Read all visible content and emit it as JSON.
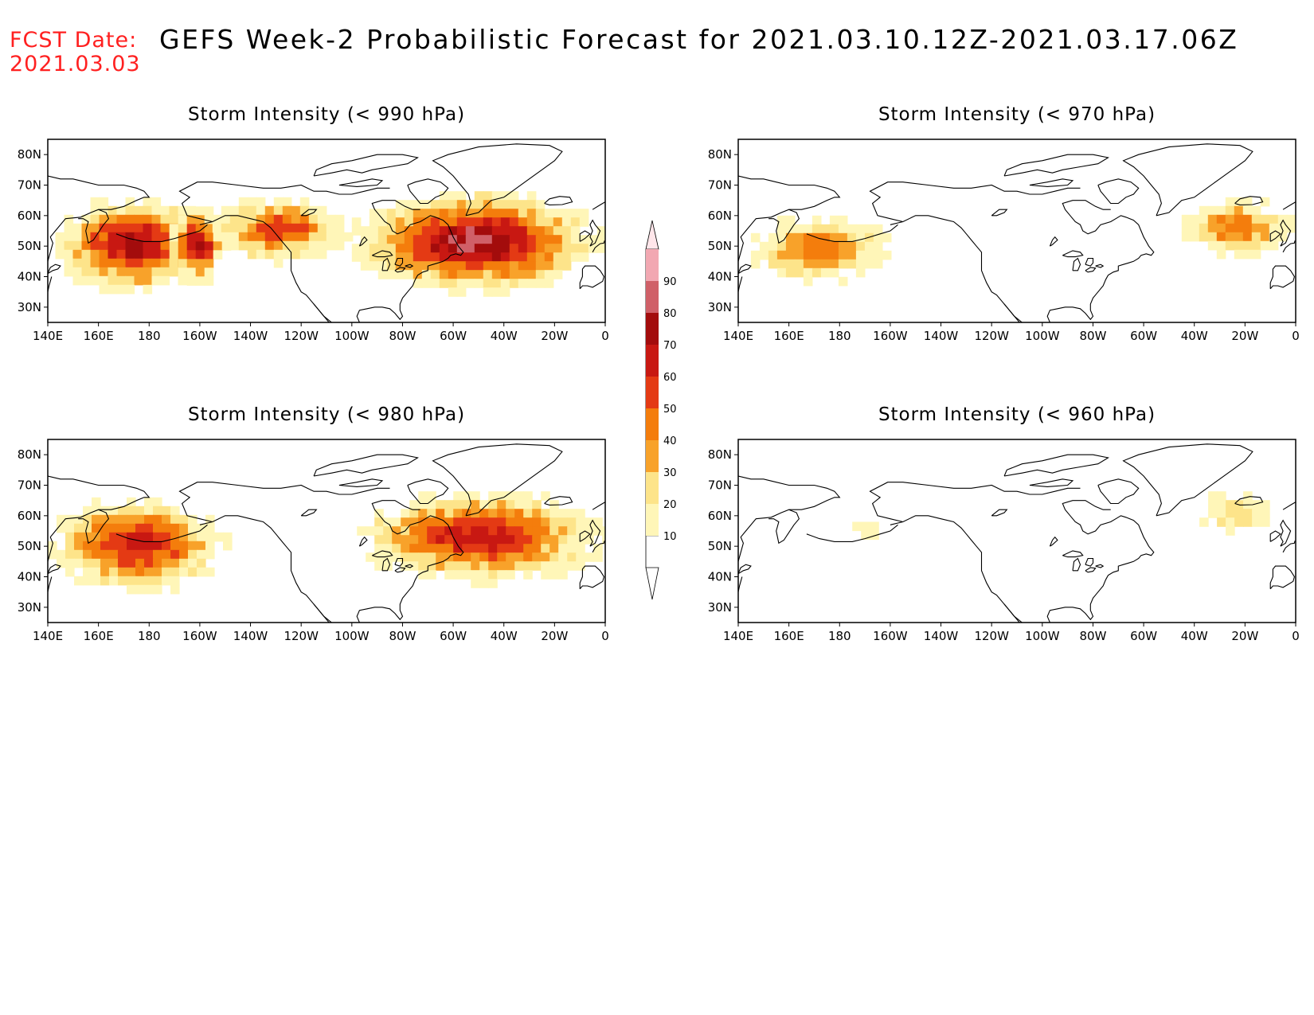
{
  "header": {
    "fcst_label": "FCST Date:",
    "fcst_date": "2021.03.03",
    "title": "GEFS Week-2 Probabilistic Forecast for 2021.03.10.12Z-2021.03.17.06Z"
  },
  "axes": {
    "lon_labels": [
      "140E",
      "160E",
      "180",
      "160W",
      "140W",
      "120W",
      "100W",
      "80W",
      "60W",
      "40W",
      "20W",
      "0"
    ],
    "lat_labels": [
      "80N",
      "70N",
      "60N",
      "50N",
      "40N",
      "30N"
    ],
    "lon_range_deg": [
      140,
      360
    ],
    "lat_range_deg": [
      25,
      85
    ]
  },
  "colorbar": {
    "levels": [
      "10",
      "20",
      "30",
      "40",
      "50",
      "60",
      "70",
      "80",
      "90"
    ],
    "colors": [
      "#fff6b8",
      "#fde48a",
      "#f8a22a",
      "#f47d0c",
      "#e43a14",
      "#c81812",
      "#a30c0c",
      "#d06068",
      "#f2a8b2",
      "#ffe6ea"
    ]
  },
  "panels": [
    {
      "id": "p990",
      "title": "Storm Intensity (< 990 hPa)",
      "regions": [
        {
          "lon": [
            143,
            205
          ],
          "lat": [
            35,
            66
          ],
          "max_level": 7
        },
        {
          "lon": [
            188,
            210
          ],
          "lat": [
            38,
            63
          ],
          "max_level": 7
        },
        {
          "lon": [
            205,
            258
          ],
          "lat": [
            45,
            66
          ],
          "max_level": 5
        },
        {
          "lon": [
            260,
            358
          ],
          "lat": [
            35,
            68
          ],
          "max_level": 8
        }
      ]
    },
    {
      "id": "p970",
      "title": "Storm Intensity (< 970 hPa)",
      "regions": [
        {
          "lon": [
            145,
            200
          ],
          "lat": [
            38,
            60
          ],
          "max_level": 4
        },
        {
          "lon": [
            315,
            358
          ],
          "lat": [
            46,
            66
          ],
          "max_level": 4
        }
      ]
    },
    {
      "id": "p980",
      "title": "Storm Intensity (< 980 hPa)",
      "regions": [
        {
          "lon": [
            140,
            210
          ],
          "lat": [
            35,
            66
          ],
          "max_level": 6
        },
        {
          "lon": [
            262,
            360
          ],
          "lat": [
            38,
            68
          ],
          "max_level": 6
        }
      ]
    },
    {
      "id": "p960",
      "title": "Storm Intensity (< 960 hPa)",
      "regions": [
        {
          "lon": [
            185,
            195
          ],
          "lat": [
            52,
            58
          ],
          "max_level": 1
        },
        {
          "lon": [
            322,
            350
          ],
          "lat": [
            55,
            68
          ],
          "max_level": 2
        }
      ]
    }
  ]
}
